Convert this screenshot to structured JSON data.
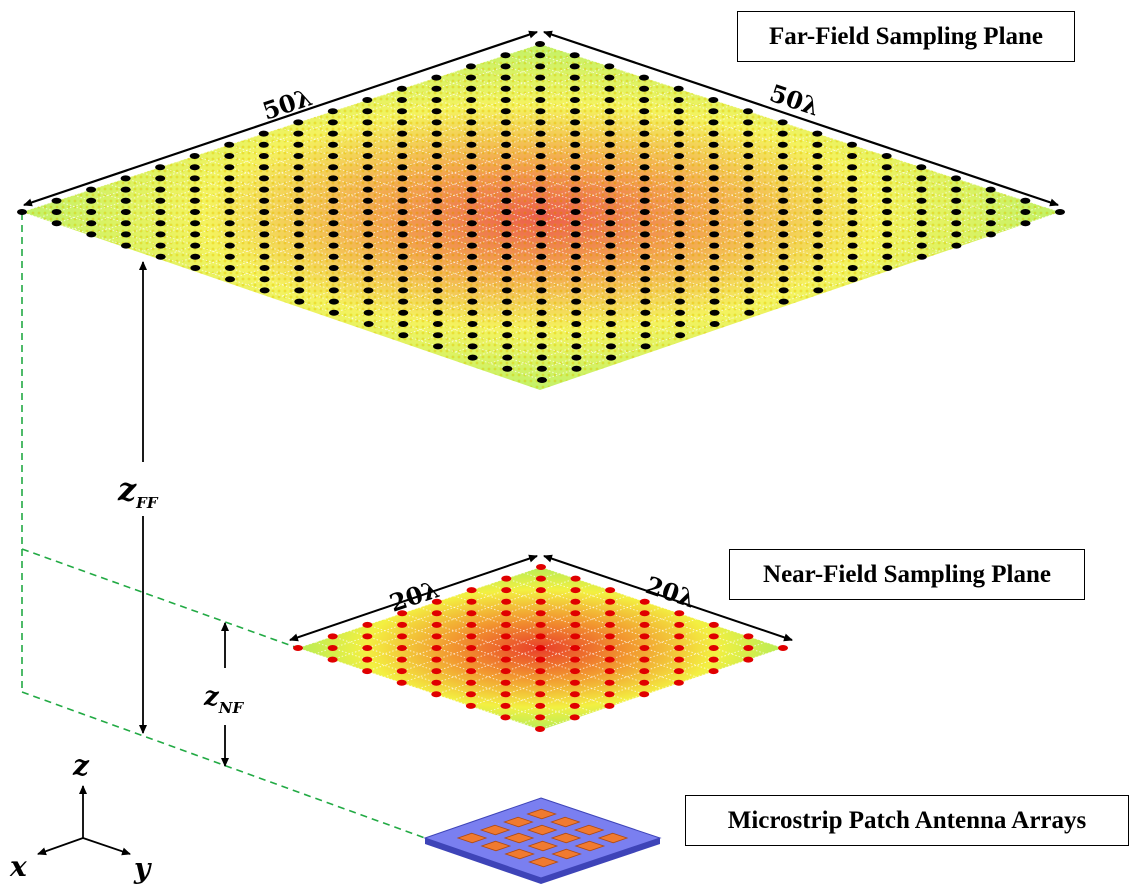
{
  "labels": {
    "far_field_plane": "Far-Field Sampling Plane",
    "near_field_plane": "Near-Field Sampling Plane",
    "antenna_arrays": "Microstrip Patch Antenna Arrays"
  },
  "dimensions": {
    "far_field_left": "50λ",
    "far_field_right": "50λ",
    "near_field_left": "20λ",
    "near_field_right": "20λ"
  },
  "distances": {
    "far_field_symbol": "z",
    "far_field_subscript": "FF",
    "near_field_symbol": "z",
    "near_field_subscript": "NF"
  },
  "axes": {
    "x": "x",
    "y": "y",
    "z": "z"
  },
  "colors": {
    "far_field_markers": "#000000",
    "near_field_markers": "#e00000",
    "guide_lines": "#22aa44",
    "substrate": "#7a7ff0",
    "patches": "#f07a30"
  }
}
